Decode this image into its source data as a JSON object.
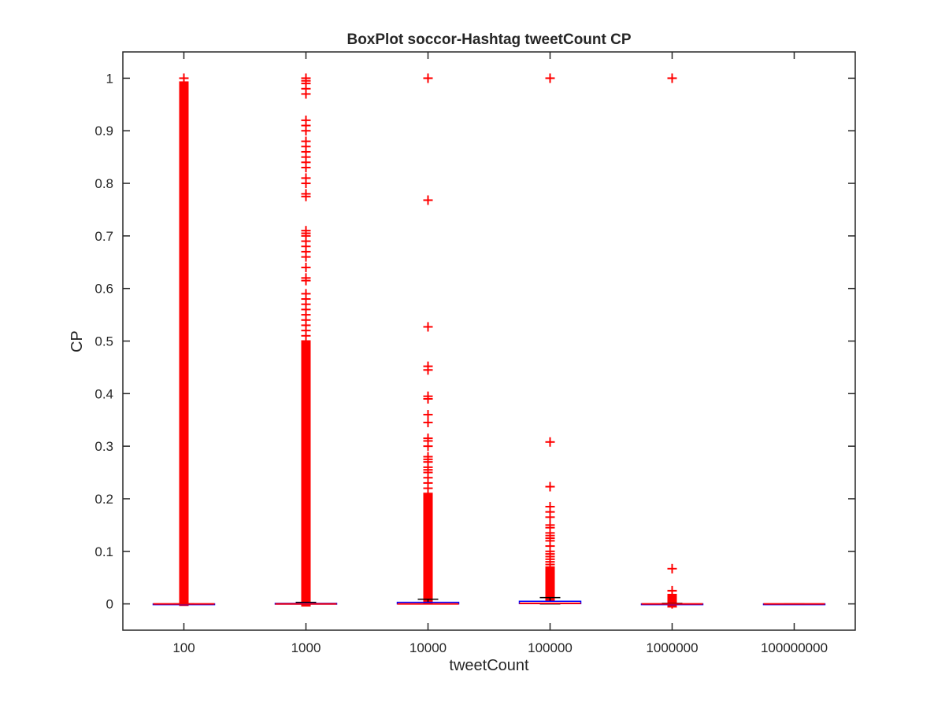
{
  "chart_data": {
    "type": "boxplot",
    "title": "BoxPlot soccor-Hashtag tweetCount CP",
    "xlabel": "tweetCount",
    "ylabel": "CP",
    "categories": [
      "100",
      "1000",
      "10000",
      "100000",
      "1000000",
      "100000000"
    ],
    "yticks": [
      "0",
      "0.1",
      "0.2",
      "0.3",
      "0.4",
      "0.5",
      "0.6",
      "0.7",
      "0.8",
      "0.9",
      "1"
    ],
    "ylim": [
      -0.05,
      1.05
    ],
    "grid": false,
    "colors": {
      "box": "#0000ff",
      "median": "#ff0000",
      "whisker": "#000000",
      "outlier": "#ff0000"
    },
    "boxes": [
      {
        "category": "100",
        "q1": 0,
        "median": 0,
        "q3": 0,
        "whisker_low": 0,
        "whisker_high": 0,
        "outlier_ranges": [
          [
            0.005,
            0.985
          ]
        ],
        "outliers": [
          1.0
        ]
      },
      {
        "category": "1000",
        "q1": 0,
        "median": 0,
        "q3": 0.001,
        "whisker_low": 0,
        "whisker_high": 0.003,
        "outlier_ranges": [
          [
            0.004,
            0.49
          ]
        ],
        "outliers": [
          1.0,
          0.995,
          0.99,
          0.98,
          0.97,
          0.92,
          0.91,
          0.9,
          0.88,
          0.87,
          0.86,
          0.85,
          0.84,
          0.83,
          0.81,
          0.8,
          0.78,
          0.775,
          0.71,
          0.705,
          0.7,
          0.69,
          0.68,
          0.67,
          0.66,
          0.64,
          0.62,
          0.615,
          0.59,
          0.58,
          0.57,
          0.56,
          0.55,
          0.54,
          0.53,
          0.52,
          0.51,
          0.5
        ]
      },
      {
        "category": "10000",
        "q1": 0,
        "median": 0,
        "q3": 0.003,
        "whisker_low": 0,
        "whisker_high": 0.009,
        "outlier_ranges": [
          [
            0.01,
            0.2
          ]
        ],
        "outliers": [
          1.0,
          0.768,
          0.527,
          0.452,
          0.445,
          0.395,
          0.39,
          0.36,
          0.345,
          0.315,
          0.31,
          0.3,
          0.28,
          0.275,
          0.27,
          0.26,
          0.255,
          0.25,
          0.24,
          0.23,
          0.22,
          0.21
        ]
      },
      {
        "category": "100000",
        "q1": 0.0005,
        "median": 0.001,
        "q3": 0.005,
        "whisker_low": 0,
        "whisker_high": 0.012,
        "outlier_ranges": [
          [
            0.015,
            0.06
          ]
        ],
        "outliers": [
          1.0,
          0.308,
          0.223,
          0.185,
          0.175,
          0.165,
          0.15,
          0.145,
          0.135,
          0.13,
          0.125,
          0.12,
          0.11,
          0.1,
          0.095,
          0.09,
          0.085,
          0.08,
          0.075,
          0.07,
          0.065
        ]
      },
      {
        "category": "1000000",
        "q1": 0,
        "median": 0,
        "q3": 0,
        "whisker_low": 0,
        "whisker_high": 0.001,
        "outlier_ranges": [
          [
            0.002,
            0.01
          ]
        ],
        "outliers": [
          1.0,
          0.067,
          0.025,
          0.0
        ]
      },
      {
        "category": "100000000",
        "q1": 0,
        "median": 0,
        "q3": 0,
        "whisker_low": 0,
        "whisker_high": 0,
        "outlier_ranges": [],
        "outliers": []
      }
    ]
  }
}
